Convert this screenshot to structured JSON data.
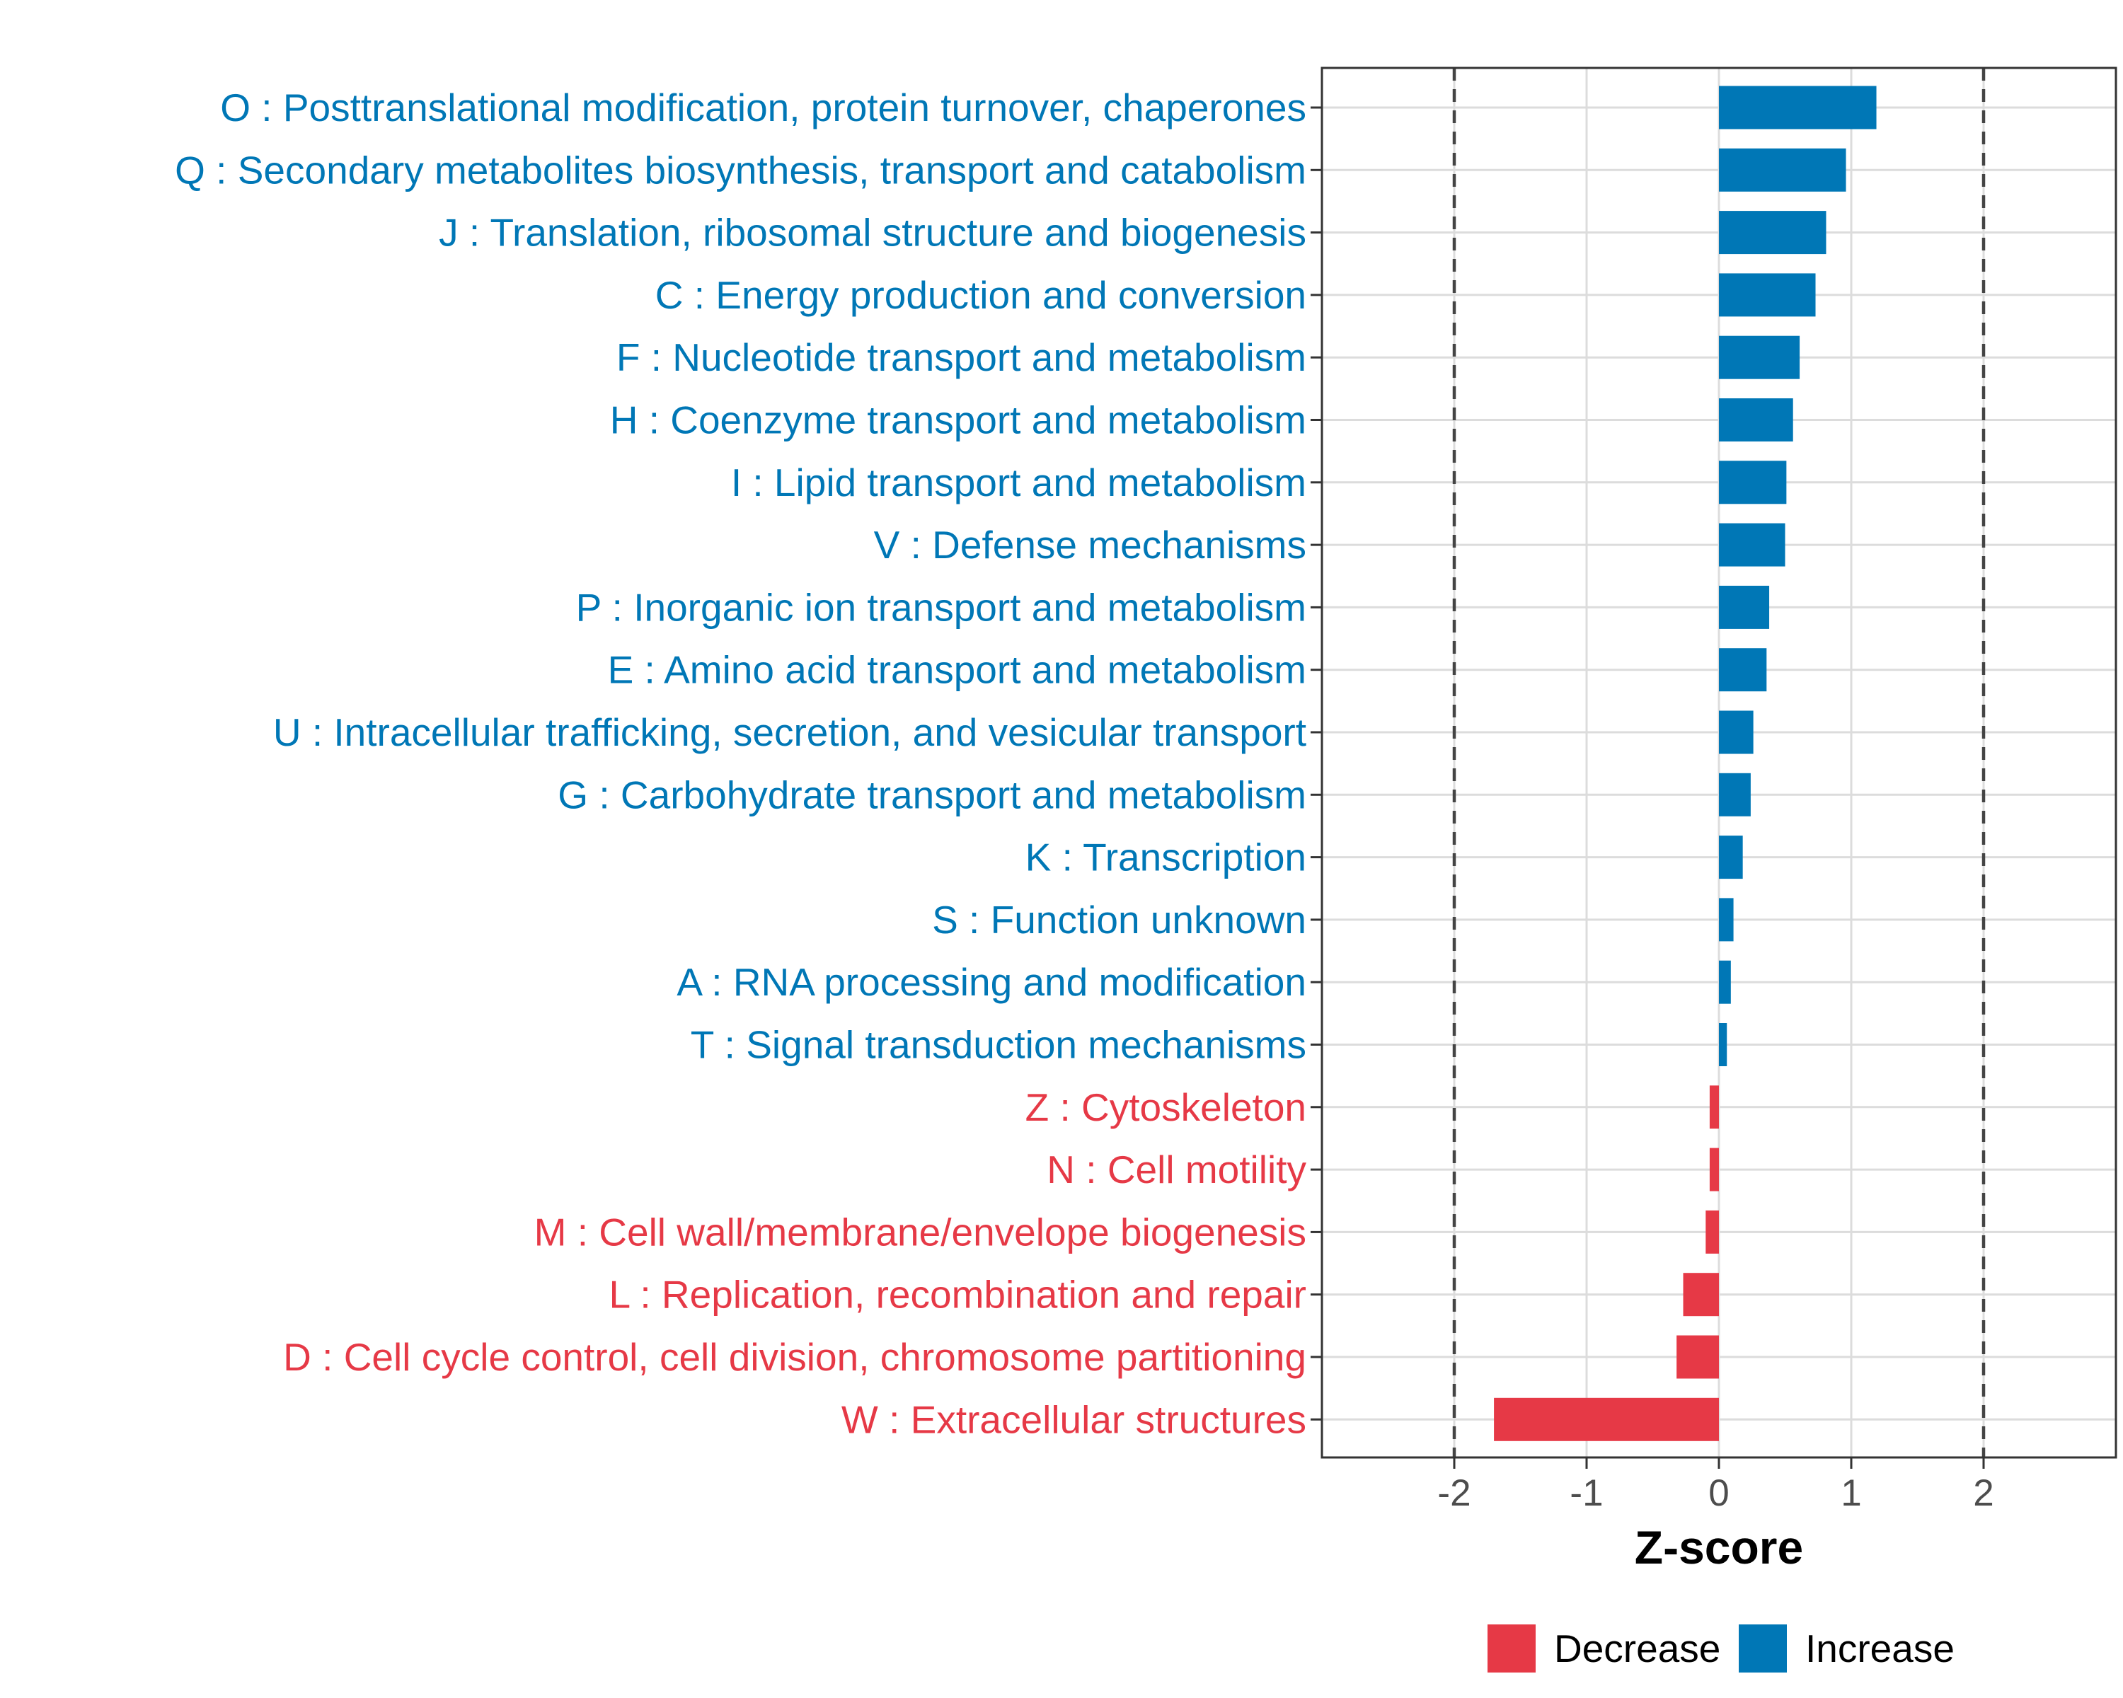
{
  "chart_data": {
    "type": "bar",
    "orientation": "horizontal",
    "title": "",
    "xlabel": "Z-score",
    "ylabel": "",
    "xlim": [
      -3,
      3
    ],
    "xticks": [
      "-2",
      "-1",
      "0",
      "1",
      "2"
    ],
    "reference_lines": [
      -2,
      2
    ],
    "grid": true,
    "legend": {
      "placement": "bottom",
      "entries": [
        {
          "name": "Decrease",
          "color": "#e63946"
        },
        {
          "name": "Increase",
          "color": "#0077b6"
        }
      ]
    },
    "colors": {
      "Increase": "#0077b6",
      "Decrease": "#e63946"
    },
    "categories": [
      "O : Posttranslational modification, protein turnover, chaperones",
      "Q : Secondary metabolites biosynthesis, transport and catabolism",
      "J : Translation, ribosomal structure and biogenesis",
      "C : Energy production and conversion",
      "F : Nucleotide transport and metabolism",
      "H : Coenzyme transport and metabolism",
      "I : Lipid transport and metabolism",
      "V : Defense mechanisms",
      "P : Inorganic ion transport and metabolism",
      "E : Amino acid transport and metabolism",
      "U : Intracellular trafficking, secretion, and vesicular transport",
      "G : Carbohydrate transport and metabolism",
      "K : Transcription",
      "S : Function unknown",
      "A : RNA processing and modification",
      "T : Signal transduction mechanisms",
      "Z : Cytoskeleton",
      "N : Cell motility",
      "M : Cell wall/membrane/envelope biogenesis",
      "L : Replication, recombination and repair",
      "D : Cell cycle control, cell division, chromosome partitioning",
      "W : Extracellular structures"
    ],
    "values": [
      1.19,
      0.96,
      0.81,
      0.73,
      0.61,
      0.56,
      0.51,
      0.5,
      0.38,
      0.36,
      0.26,
      0.24,
      0.18,
      0.11,
      0.09,
      0.06,
      -0.07,
      -0.07,
      -0.1,
      -0.27,
      -0.32,
      -1.7
    ],
    "groups": [
      "Increase",
      "Increase",
      "Increase",
      "Increase",
      "Increase",
      "Increase",
      "Increase",
      "Increase",
      "Increase",
      "Increase",
      "Increase",
      "Increase",
      "Increase",
      "Increase",
      "Increase",
      "Increase",
      "Decrease",
      "Decrease",
      "Decrease",
      "Decrease",
      "Decrease",
      "Decrease"
    ]
  }
}
